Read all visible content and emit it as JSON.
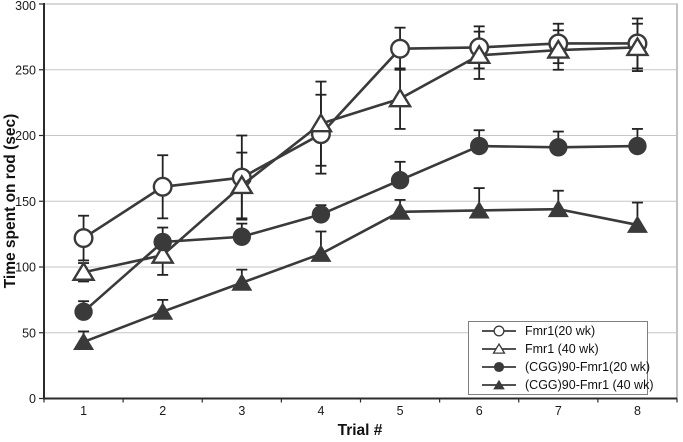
{
  "colors": {
    "series_stroke": "#3a3a3a",
    "series_fill": "#3a3a3a",
    "error_bar": "#222222",
    "gridline": "#c6c6c6",
    "plot_border": "#999999",
    "axis": "#2b2b2b",
    "text": "#1a1a1a",
    "legend_border": "#808080",
    "background": "#ffffff"
  },
  "chart_data": {
    "type": "line",
    "title": "",
    "xlabel": "Trial #",
    "ylabel": "Time spent on rod (sec)",
    "categories": [
      "1",
      "2",
      "3",
      "4",
      "5",
      "6",
      "7",
      "8"
    ],
    "ylim": [
      0,
      300
    ],
    "yticks": [
      0,
      50,
      100,
      150,
      200,
      250,
      300
    ],
    "grid": "horizontal",
    "legend_position": "inside-bottom-right",
    "series": [
      {
        "name": "Fmr1(20 wk)",
        "marker": "open-circle",
        "values": [
          122,
          161,
          168,
          201,
          266,
          267,
          270,
          270
        ],
        "upper_errors": [
          17,
          24,
          32,
          30,
          16,
          16,
          15,
          19
        ],
        "error_direction": "both"
      },
      {
        "name": "Fmr1 (40 wk)",
        "marker": "open-triangle",
        "values": [
          96,
          109,
          162,
          209,
          228,
          261,
          265,
          267
        ],
        "upper_errors": [
          7,
          15,
          25,
          32,
          23,
          18,
          15,
          18
        ],
        "error_direction": "both"
      },
      {
        "name": "(CGG)90-Fmr1(20 wk)",
        "marker": "filled-circle",
        "values": [
          66,
          119,
          123,
          140,
          166,
          192,
          191,
          192
        ],
        "upper_errors": [
          8,
          11,
          10,
          7,
          14,
          12,
          12,
          13
        ],
        "error_direction": "up"
      },
      {
        "name": "(CGG)90-Fmr1 (40 wk)",
        "marker": "filled-triangle",
        "values": [
          43,
          66,
          88,
          110,
          142,
          143,
          144,
          132
        ],
        "upper_errors": [
          8,
          9,
          10,
          17,
          9,
          17,
          14,
          17
        ],
        "error_direction": "up"
      }
    ]
  }
}
